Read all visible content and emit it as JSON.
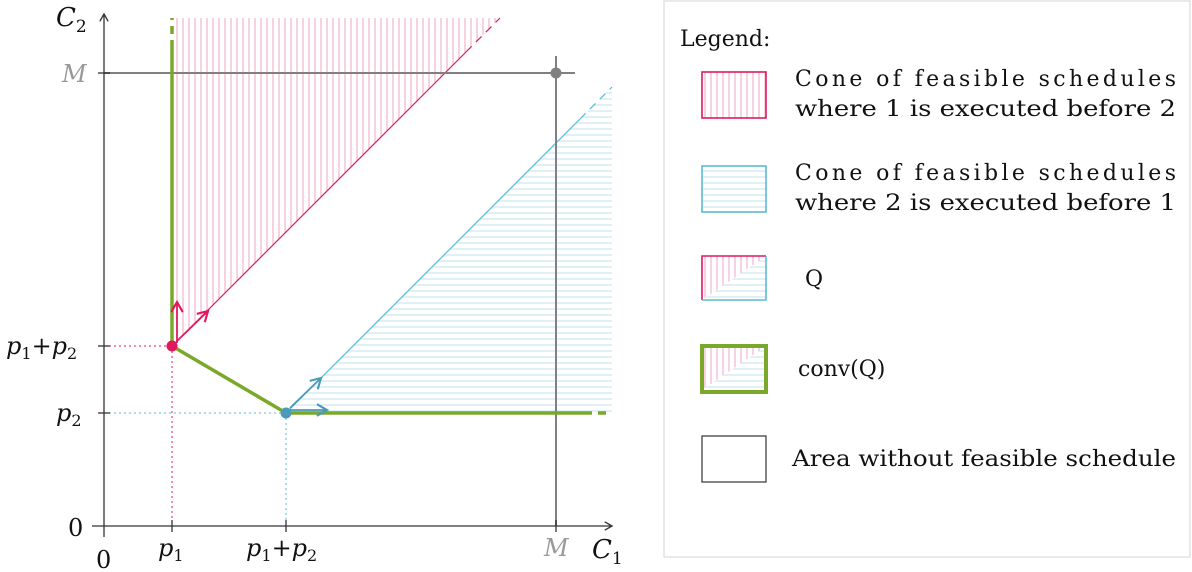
{
  "axes": {
    "x_label": "C",
    "x_label_sub": "1",
    "y_label": "C",
    "y_label_sub": "2",
    "origin_x_label": "0",
    "origin_y_label": "0",
    "x_ticks": [
      {
        "base": "p",
        "sub": "1"
      },
      {
        "base": "p",
        "sub": "1",
        "plus": "+",
        "base2": "p",
        "sub2": "2"
      }
    ],
    "y_ticks": [
      {
        "base": "p",
        "sub": "2"
      },
      {
        "base": "p",
        "sub": "1",
        "plus": "+",
        "base2": "p",
        "sub2": "2"
      }
    ],
    "m_x_label": "M",
    "m_y_label": "M"
  },
  "colors": {
    "cone_1_before_2": "#e0195f",
    "cone_2_before_1": "#5bbad5",
    "conv_q": "#7aa82a",
    "axis": "#333333",
    "m_line": "#808080"
  },
  "legend": {
    "title": "Legend:",
    "items": [
      {
        "line1": "Cone of feasible schedules",
        "line2": "where 1 is executed before 2"
      },
      {
        "line1": "Cone of feasible schedules",
        "line2": "where 2 is executed before 1"
      },
      {
        "line1": "Q"
      },
      {
        "line1": "conv(Q)"
      },
      {
        "line1": "Area without feasible schedule"
      }
    ]
  }
}
